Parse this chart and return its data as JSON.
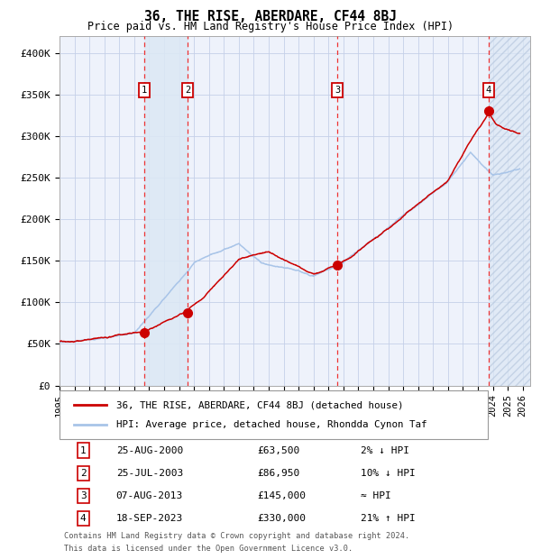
{
  "title": "36, THE RISE, ABERDARE, CF44 8BJ",
  "subtitle": "Price paid vs. HM Land Registry's House Price Index (HPI)",
  "legend_line1": "36, THE RISE, ABERDARE, CF44 8BJ (detached house)",
  "legend_line2": "HPI: Average price, detached house, Rhondda Cynon Taf",
  "footer_line1": "Contains HM Land Registry data © Crown copyright and database right 2024.",
  "footer_line2": "This data is licensed under the Open Government Licence v3.0.",
  "transactions": [
    {
      "num": 1,
      "date": "25-AUG-2000",
      "price": 63500,
      "pct": "2% ↓ HPI",
      "year": 2000.65
    },
    {
      "num": 2,
      "date": "25-JUL-2003",
      "price": 86950,
      "pct": "10% ↓ HPI",
      "year": 2003.57
    },
    {
      "num": 3,
      "date": "07-AUG-2013",
      "price": 145000,
      "pct": "≈ HPI",
      "year": 2013.6
    },
    {
      "num": 4,
      "date": "18-SEP-2023",
      "price": 330000,
      "pct": "21% ↑ HPI",
      "year": 2023.72
    }
  ],
  "ylim": [
    0,
    420000
  ],
  "xlim_start": 1995.0,
  "xlim_end": 2026.5,
  "yticks": [
    0,
    50000,
    100000,
    150000,
    200000,
    250000,
    300000,
    350000,
    400000
  ],
  "ytick_labels": [
    "£0",
    "£50K",
    "£100K",
    "£150K",
    "£200K",
    "£250K",
    "£300K",
    "£350K",
    "£400K"
  ],
  "xticks": [
    1995,
    1996,
    1997,
    1998,
    1999,
    2000,
    2001,
    2002,
    2003,
    2004,
    2005,
    2006,
    2007,
    2008,
    2009,
    2010,
    2011,
    2012,
    2013,
    2014,
    2015,
    2016,
    2017,
    2018,
    2019,
    2020,
    2021,
    2022,
    2023,
    2024,
    2025,
    2026
  ],
  "bg_color": "#eef2fb",
  "grid_color": "#c5d0e8",
  "hpi_color": "#a8c4e8",
  "price_color": "#cc0000",
  "dashed_color": "#ee3333",
  "marker_color": "#cc0000",
  "shade_color": "#dce8f5",
  "table_rows": [
    [
      "1",
      "25-AUG-2000",
      "£63,500",
      "2% ↓ HPI"
    ],
    [
      "2",
      "25-JUL-2003",
      "£86,950",
      "10% ↓ HPI"
    ],
    [
      "3",
      "07-AUG-2013",
      "£145,000",
      "≈ HPI"
    ],
    [
      "4",
      "18-SEP-2023",
      "£330,000",
      "21% ↑ HPI"
    ]
  ]
}
